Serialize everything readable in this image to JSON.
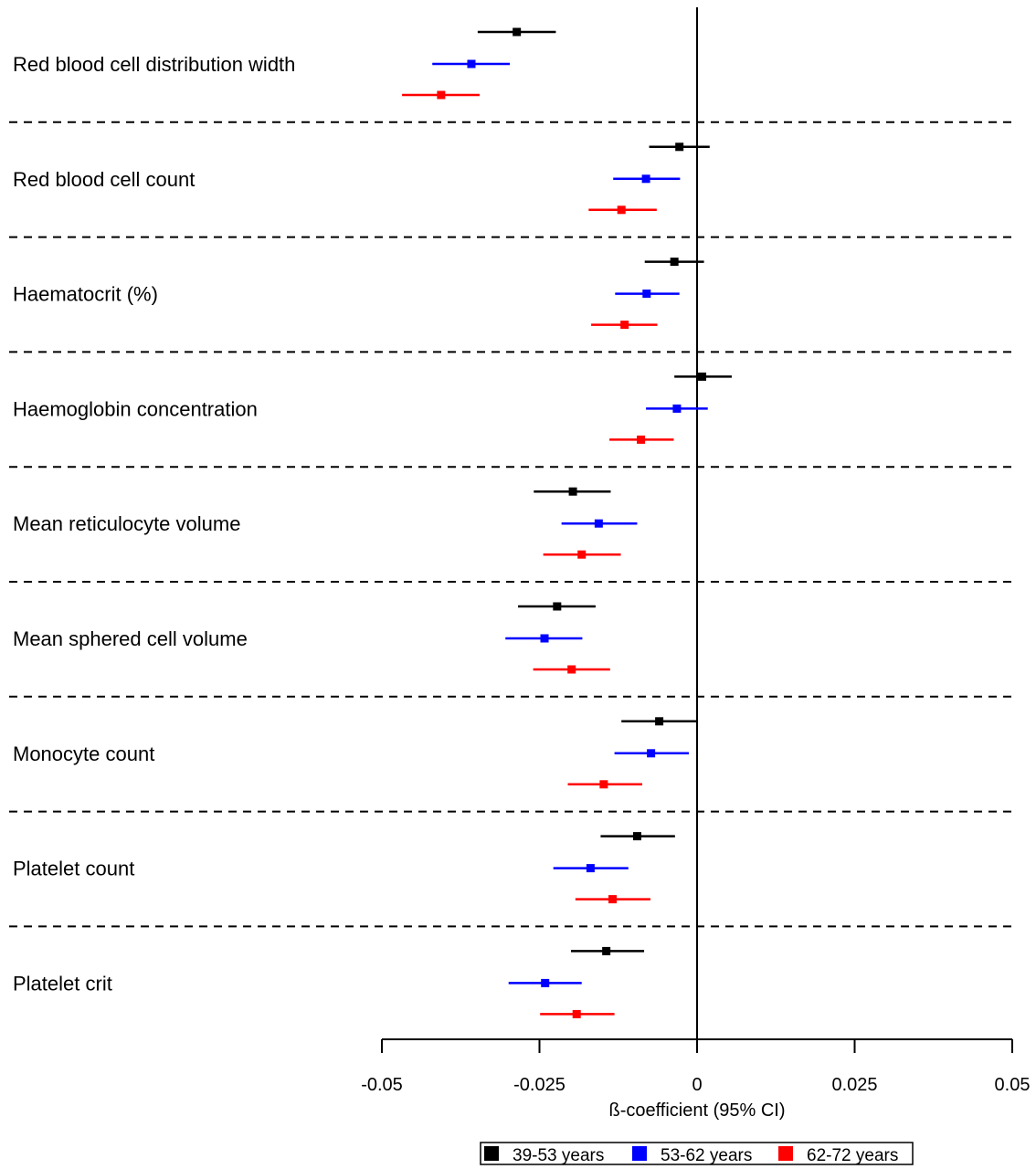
{
  "chart_data": {
    "type": "forest",
    "xlabel": "ß-coefficient (95% CI)",
    "ylabel": "",
    "title": "",
    "xlim": [
      -0.05,
      0.05
    ],
    "xticks": [
      -0.05,
      -0.025,
      0,
      0.025,
      0.05
    ],
    "xtick_labels": [
      "-0.05",
      "-0.025",
      "0",
      "0.025",
      "0.05"
    ],
    "reference_line": 0,
    "legend_position": "bottom",
    "series": [
      {
        "name": "39-53 years",
        "color": "#000000"
      },
      {
        "name": "53-62 years",
        "color": "#0000ff"
      },
      {
        "name": "62-72 years",
        "color": "#ff0000"
      }
    ],
    "categories": [
      {
        "label": "Red blood cell distribution width",
        "estimates": [
          {
            "est": -0.0286,
            "lo": -0.0348,
            "hi": -0.0224
          },
          {
            "est": -0.0358,
            "lo": -0.042,
            "hi": -0.0297
          },
          {
            "est": -0.0406,
            "lo": -0.0468,
            "hi": -0.0345
          }
        ]
      },
      {
        "label": "Red blood cell count",
        "estimates": [
          {
            "est": -0.0028,
            "lo": -0.0076,
            "hi": 0.002
          },
          {
            "est": -0.0081,
            "lo": -0.0133,
            "hi": -0.0027
          },
          {
            "est": -0.012,
            "lo": -0.0172,
            "hi": -0.0064
          }
        ]
      },
      {
        "label": "Haematocrit (%)",
        "estimates": [
          {
            "est": -0.0036,
            "lo": -0.0083,
            "hi": 0.0011
          },
          {
            "est": -0.008,
            "lo": -0.013,
            "hi": -0.0028
          },
          {
            "est": -0.0115,
            "lo": -0.0168,
            "hi": -0.0063
          }
        ]
      },
      {
        "label": "Haemoglobin concentration",
        "estimates": [
          {
            "est": 0.0008,
            "lo": -0.0036,
            "hi": 0.0055
          },
          {
            "est": -0.0032,
            "lo": -0.0081,
            "hi": 0.0017
          },
          {
            "est": -0.0089,
            "lo": -0.0139,
            "hi": -0.0037
          }
        ]
      },
      {
        "label": "Mean reticulocyte volume",
        "estimates": [
          {
            "est": -0.0197,
            "lo": -0.0259,
            "hi": -0.0137
          },
          {
            "est": -0.0156,
            "lo": -0.0215,
            "hi": -0.0095
          },
          {
            "est": -0.0183,
            "lo": -0.0244,
            "hi": -0.0121
          }
        ]
      },
      {
        "label": "Mean sphered cell volume",
        "estimates": [
          {
            "est": -0.0222,
            "lo": -0.0284,
            "hi": -0.0161
          },
          {
            "est": -0.0242,
            "lo": -0.0304,
            "hi": -0.0182
          },
          {
            "est": -0.0199,
            "lo": -0.026,
            "hi": -0.0138
          }
        ]
      },
      {
        "label": "Monocyte count",
        "estimates": [
          {
            "est": -0.006,
            "lo": -0.012,
            "hi": 0.0
          },
          {
            "est": -0.0073,
            "lo": -0.0131,
            "hi": -0.0013
          },
          {
            "est": -0.0148,
            "lo": -0.0205,
            "hi": -0.0087
          }
        ]
      },
      {
        "label": "Platelet count",
        "estimates": [
          {
            "est": -0.0095,
            "lo": -0.0153,
            "hi": -0.0035
          },
          {
            "est": -0.0169,
            "lo": -0.0228,
            "hi": -0.0109
          },
          {
            "est": -0.0134,
            "lo": -0.0193,
            "hi": -0.0074
          }
        ]
      },
      {
        "label": "Platelet crit",
        "estimates": [
          {
            "est": -0.0144,
            "lo": -0.02,
            "hi": -0.0084
          },
          {
            "est": -0.0241,
            "lo": -0.0299,
            "hi": -0.0183
          },
          {
            "est": -0.0191,
            "lo": -0.0249,
            "hi": -0.0131
          }
        ]
      }
    ]
  }
}
